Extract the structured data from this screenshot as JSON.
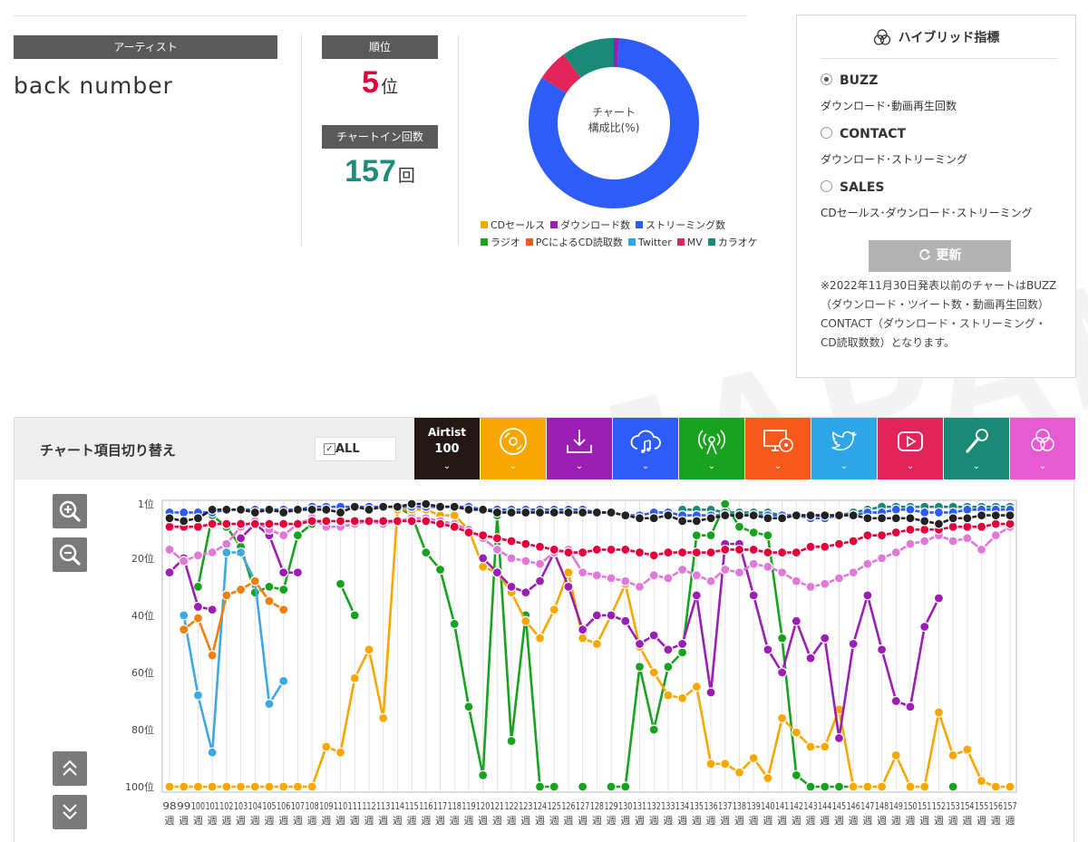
{
  "artist": {
    "label": "アーティスト",
    "name": "back number"
  },
  "rank": {
    "label": "順位",
    "value": "5",
    "unit": "位"
  },
  "chart_in": {
    "label": "チャートイン回数",
    "value": "157",
    "unit": "回"
  },
  "donut": {
    "center_line1": "チャート",
    "center_line2": "構成比(%)",
    "segments": [
      {
        "name": "CDセールス",
        "value": 0,
        "color": "#f7a800"
      },
      {
        "name": "ダウンロード数",
        "value": 1,
        "color": "#9b1fb3"
      },
      {
        "name": "ストリーミング数",
        "value": 83,
        "color": "#2d5cf6"
      },
      {
        "name": "ラジオ",
        "value": 0,
        "color": "#18a21f"
      },
      {
        "name": "PCによるCD読取数",
        "value": 0,
        "color": "#f55a1c"
      },
      {
        "name": "Twitter",
        "value": 0,
        "color": "#2ea5e6"
      },
      {
        "name": "MV",
        "value": 6,
        "color": "#e2245a"
      },
      {
        "name": "カラオケ",
        "value": 10,
        "color": "#1a8a76"
      }
    ]
  },
  "legend_rows": [
    [
      {
        "label": "CDセールス",
        "color": "#f7a800"
      },
      {
        "label": "ダウンロード数",
        "color": "#9b1fb3"
      },
      {
        "label": "ストリーミング数",
        "color": "#2d5cf6"
      }
    ],
    [
      {
        "label": "ラジオ",
        "color": "#18a21f"
      },
      {
        "label": "PCによるCD読取数",
        "color": "#f55a1c"
      },
      {
        "label": "Twitter",
        "color": "#2ea5e6"
      },
      {
        "label": "MV",
        "color": "#e2245a"
      },
      {
        "label": "カラオケ",
        "color": "#1a8a76"
      }
    ]
  ],
  "hybrid": {
    "title": "ハイブリッド指標",
    "options": [
      {
        "label": "BUZZ",
        "desc": "ダウンロード･動画再生回数",
        "selected": true
      },
      {
        "label": "CONTACT",
        "desc": "ダウンロード･ストリーミング",
        "selected": false
      },
      {
        "label": "SALES",
        "desc": "CDセールス･ダウンロード･ストリーミング",
        "selected": false
      }
    ],
    "update_label": "更新",
    "note": "※2022年11月30日発表以前のチャートはBUZZ（ダウンロード・ツイート数・動画再生回数）CONTACT（ダウンロード・ストリーミング・CD読取数数）となります。"
  },
  "panel": {
    "title": "チャート項目切り替え",
    "all_label": "ALL",
    "tabs": [
      {
        "name": "airtist100",
        "line1": "Airtist",
        "line2": "100",
        "color": "#231815",
        "icon": "text"
      },
      {
        "name": "cd-sales",
        "color": "#f7a800",
        "icon": "disc-icon"
      },
      {
        "name": "download",
        "color": "#9b1fb3",
        "icon": "download-icon"
      },
      {
        "name": "streaming",
        "color": "#2d5cf6",
        "icon": "cloud-music-icon"
      },
      {
        "name": "radio",
        "color": "#18a21f",
        "icon": "radio-icon"
      },
      {
        "name": "pc-cd-read",
        "color": "#f55a1c",
        "icon": "pc-disc-icon"
      },
      {
        "name": "twitter",
        "color": "#2ea5e6",
        "icon": "twitter-icon"
      },
      {
        "name": "mv",
        "color": "#e2245a",
        "icon": "play-icon"
      },
      {
        "name": "karaoke",
        "color": "#1a8a76",
        "icon": "microphone-icon"
      },
      {
        "name": "hybrid",
        "color": "#e65ad2",
        "icon": "circles-icon"
      }
    ]
  },
  "chart_data": {
    "type": "line",
    "y_reversed": true,
    "ylim": [
      1,
      100
    ],
    "yticks": [
      1,
      20,
      40,
      60,
      80,
      100
    ],
    "ytick_labels": [
      "1位",
      "20位",
      "40位",
      "60位",
      "80位",
      "100位"
    ],
    "x_week_start": 98,
    "x_week_end": 157,
    "x_week_suffix": "週",
    "grid": true,
    "legend": "none",
    "series": [
      {
        "key": "airtist100",
        "color": "#222222",
        "values": [
          6,
          7,
          6,
          3,
          3,
          3,
          4,
          3,
          4,
          3,
          3,
          3,
          4,
          2,
          3,
          2,
          2,
          1,
          1,
          2,
          2,
          3,
          3,
          4,
          4,
          4,
          4,
          4,
          4,
          4,
          4,
          4,
          5,
          6,
          6,
          5,
          7,
          7,
          6,
          5,
          5,
          5,
          6,
          6,
          5,
          5,
          5,
          5,
          5,
          6,
          6,
          6,
          6,
          7,
          8,
          6,
          6,
          5,
          5,
          5
        ]
      },
      {
        "key": "streaming",
        "color": "#2d5cf6",
        "values": [
          4,
          4,
          4,
          4,
          3,
          3,
          3,
          3,
          3,
          3,
          2,
          2,
          2,
          2,
          2,
          2,
          2,
          2,
          2,
          2,
          2,
          2,
          3,
          3,
          3,
          3,
          3,
          3,
          3,
          3,
          4,
          4,
          5,
          5,
          4,
          4,
          5,
          5,
          5,
          5,
          5,
          5,
          5,
          5,
          5,
          6,
          6,
          5,
          5,
          4,
          4,
          3,
          3,
          4,
          4,
          4,
          3,
          3,
          3,
          3
        ]
      },
      {
        "key": "karaoke",
        "color": "#1a8a76",
        "values": [
          null,
          null,
          null,
          null,
          null,
          null,
          null,
          null,
          null,
          null,
          null,
          null,
          null,
          null,
          null,
          null,
          null,
          null,
          null,
          null,
          null,
          null,
          null,
          null,
          null,
          null,
          null,
          null,
          null,
          null,
          null,
          null,
          null,
          null,
          null,
          null,
          3,
          3,
          3,
          4,
          4,
          4,
          4,
          5,
          5,
          5,
          5,
          5,
          4,
          3,
          2,
          2,
          2,
          2,
          2,
          2,
          2,
          2,
          2,
          2
        ]
      },
      {
        "key": "mv",
        "color": "#e2003c",
        "values": [
          9,
          9,
          9,
          8,
          8,
          8,
          8,
          8,
          8,
          8,
          7,
          7,
          7,
          7,
          7,
          7,
          7,
          7,
          7,
          8,
          9,
          11,
          12,
          13,
          14,
          15,
          16,
          17,
          18,
          18,
          17,
          17,
          17,
          18,
          19,
          18,
          18,
          18,
          18,
          17,
          17,
          17,
          18,
          18,
          18,
          16,
          16,
          15,
          14,
          12,
          12,
          11,
          10,
          10,
          10,
          9,
          9,
          9,
          8,
          8
        ]
      },
      {
        "key": "hybrid",
        "color": "#e07ad8",
        "values": [
          17,
          21,
          19,
          18,
          15,
          9,
          7,
          10,
          12,
          8,
          6,
          9,
          9,
          8,
          7,
          8,
          7,
          6,
          6,
          7,
          8,
          10,
          13,
          17,
          20,
          21,
          22,
          18,
          17,
          25,
          26,
          27,
          28,
          30,
          26,
          27,
          24,
          26,
          28,
          24,
          25,
          22,
          23,
          25,
          28,
          30,
          29,
          27,
          25,
          22,
          20,
          18,
          15,
          14,
          12,
          14,
          13,
          17,
          12,
          9
        ]
      },
      {
        "key": "download",
        "color": "#9b1fb3",
        "values": [
          25,
          20,
          37,
          38,
          null,
          13,
          8,
          12,
          25,
          25,
          null,
          null,
          null,
          null,
          null,
          null,
          null,
          null,
          null,
          null,
          null,
          null,
          20,
          25,
          30,
          32,
          28,
          18,
          30,
          45,
          40,
          40,
          42,
          50,
          47,
          52,
          50,
          33,
          67,
          15,
          15,
          33,
          52,
          60,
          42,
          55,
          48,
          83,
          50,
          33,
          52,
          70,
          72,
          44,
          34,
          null,
          null,
          null,
          null,
          null
        ]
      },
      {
        "key": "cd",
        "color": "#f7a800",
        "values": [
          100,
          100,
          100,
          100,
          100,
          100,
          100,
          100,
          100,
          100,
          100,
          86,
          88,
          62,
          52,
          76,
          3,
          3,
          3,
          5,
          5,
          10,
          23,
          25,
          32,
          42,
          48,
          38,
          25,
          48,
          50,
          40,
          29,
          51,
          60,
          68,
          69,
          65,
          92,
          92,
          95,
          90,
          97,
          76,
          81,
          86,
          86,
          73,
          100,
          100,
          100,
          89,
          100,
          100,
          74,
          89,
          87,
          98,
          100,
          100
        ]
      },
      {
        "key": "radio",
        "color": "#18a21f",
        "values": [
          null,
          null,
          30,
          5,
          9,
          16,
          32,
          30,
          31,
          12,
          8,
          null,
          29,
          40,
          null,
          null,
          2,
          5,
          18,
          24,
          43,
          72,
          96,
          5,
          84,
          40,
          100,
          100,
          null,
          100,
          null,
          100,
          100,
          58,
          80,
          58,
          53,
          12,
          12,
          1,
          9,
          11,
          12,
          48,
          96,
          100,
          100,
          100,
          100,
          null,
          100,
          null,
          null,
          null,
          null,
          100,
          null,
          null,
          null,
          null
        ]
      },
      {
        "key": "pc-cd-read",
        "color": "#f07f12",
        "values": [
          null,
          45,
          41,
          54,
          33,
          31,
          28,
          35,
          38,
          null,
          null,
          null,
          null,
          null,
          null,
          null,
          null,
          null,
          null,
          null,
          null,
          null,
          null,
          null,
          null,
          null,
          null,
          null,
          null,
          null,
          null,
          null,
          null,
          null,
          null,
          null,
          null,
          null,
          null,
          null,
          null,
          null,
          null,
          null,
          null,
          null,
          null,
          null,
          null,
          null,
          null,
          null,
          null,
          null,
          null,
          null,
          null,
          null,
          null,
          null
        ]
      },
      {
        "key": "twitter",
        "color": "#3ea9e0",
        "values": [
          null,
          40,
          68,
          88,
          18,
          18,
          28,
          71,
          63,
          null,
          null,
          null,
          null,
          null,
          null,
          null,
          null,
          null,
          null,
          null,
          null,
          null,
          null,
          null,
          null,
          null,
          null,
          null,
          null,
          null,
          null,
          null,
          null,
          null,
          null,
          null,
          null,
          null,
          null,
          null,
          null,
          null,
          null,
          null,
          null,
          null,
          null,
          null,
          null,
          null,
          null,
          null,
          null,
          null,
          null,
          null,
          null,
          null,
          null,
          null
        ]
      }
    ]
  }
}
